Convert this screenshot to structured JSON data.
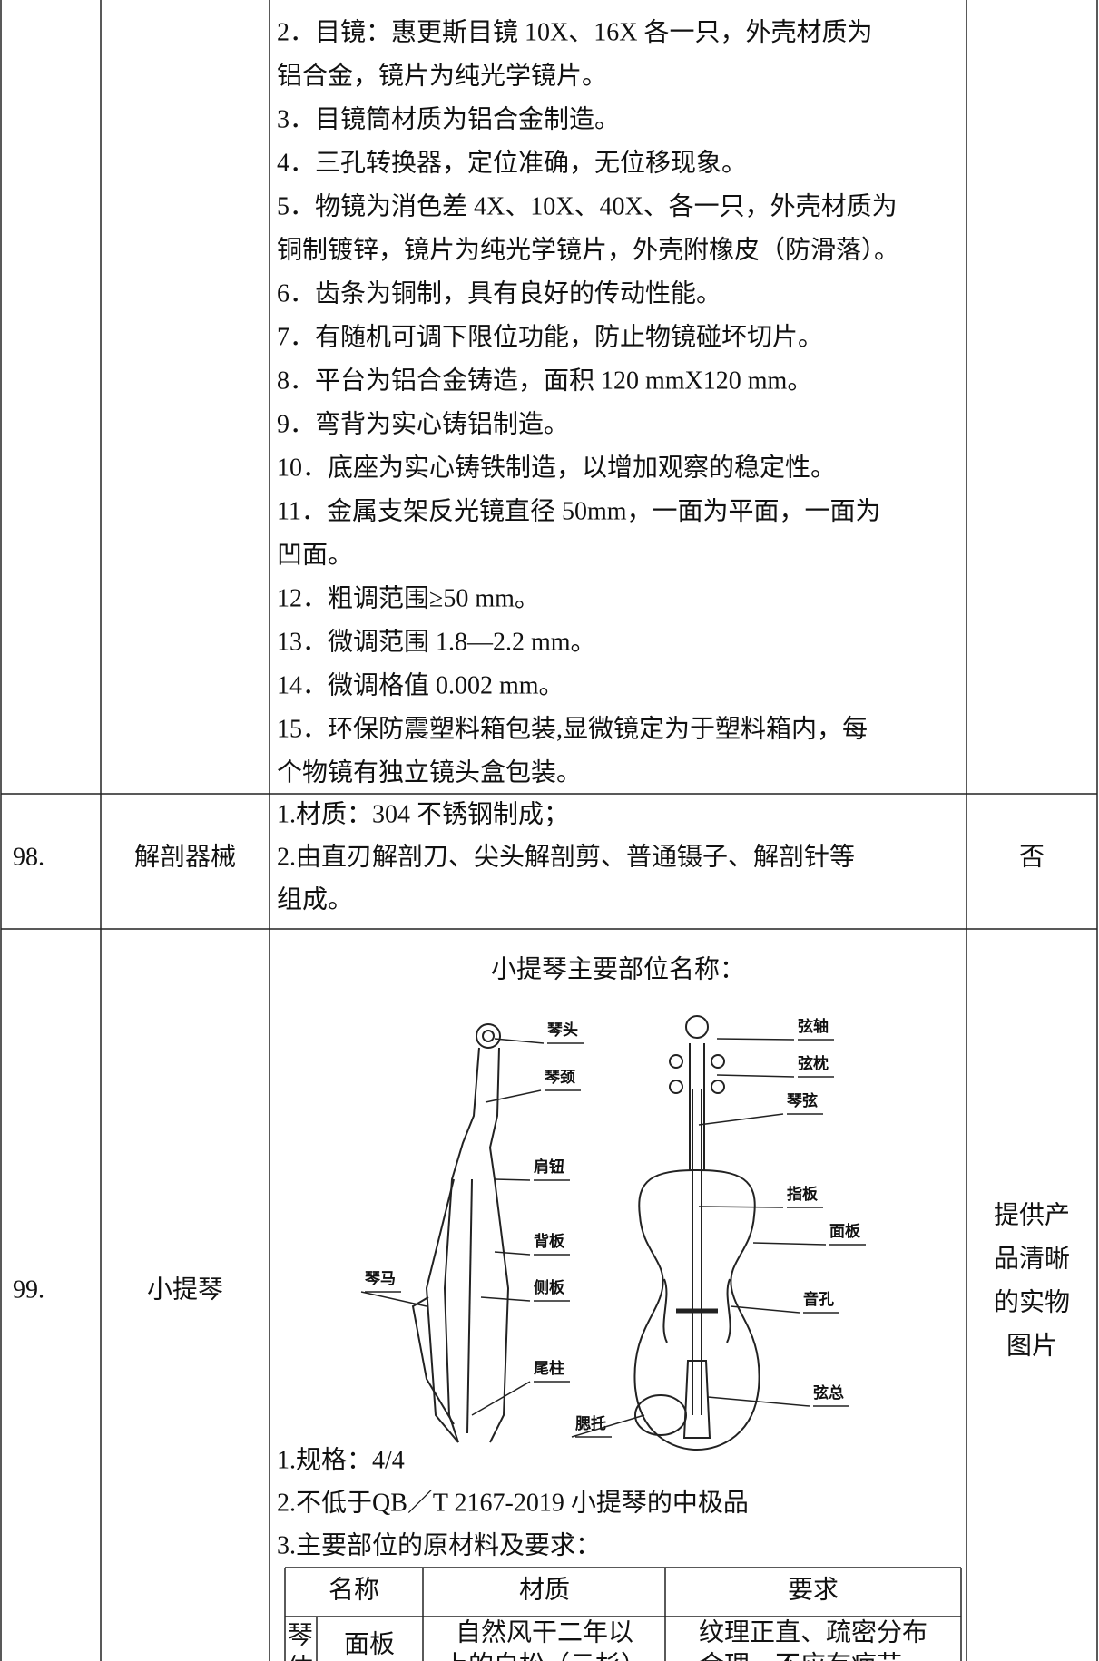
{
  "rows": [
    {
      "lines": [
        "2．目镜：惠更斯目镜 10X、16X 各一只，外壳材质为",
        "铝合金，镜片为纯光学镜片。",
        "3．目镜筒材质为铝合金制造。",
        "4．三孔转换器，定位准确，无位移现象。",
        "5．物镜为消色差 4X、10X、40X、各一只，外壳材质为",
        "铜制镀锌，镜片为纯光学镜片，外壳附橡皮（防滑落）。",
        "6．齿条为铜制，具有良好的传动性能。",
        "7．有随机可调下限位功能，防止物镜碰坏切片。",
        "8．平台为铝合金铸造，面积 120 mmX120 mm。",
        "9．弯背为实心铸铝制造。",
        "10．底座为实心铸铁制造，以增加观察的稳定性。",
        "11．金属支架反光镜直径 50mm，一面为平面，一面为",
        "凹面。",
        "12．粗调范围≥50 mm。",
        "13．微调范围 1.8—2.2 mm。",
        "14．微调格值 0.002 mm。",
        "15．环保防震塑料箱包装,显微镜定为于塑料箱内，每",
        "个物镜有独立镜头盒包装。"
      ]
    },
    {
      "no": "98.",
      "name": "解剖器械",
      "lines": [
        "1.材质：304 不锈钢制成；",
        "2.由直刃解剖刀、尖头解剖剪、普通镊子、解剖针等",
        "组成。"
      ],
      "note": "否"
    },
    {
      "no": "99.",
      "name": "小提琴",
      "figure_title": "小提琴主要部位名称：",
      "figure_labels": [
        "琴头",
        "琴颈",
        "肩钮",
        "背板",
        "琴马",
        "侧板",
        "尾柱",
        "腮托",
        "弦轴",
        "弦枕",
        "琴弦",
        "指板",
        "面板",
        "音孔",
        "弦总"
      ],
      "lines": [
        "1.规格：4/4",
        "2.不低于QB／T 2167-2019 小提琴的中极品",
        "3.主要部位的原材料及要求："
      ],
      "note_lines": [
        "提供产",
        "品清晰",
        "的实物",
        "图片"
      ],
      "sub_table": {
        "header": [
          "名称",
          "材质",
          "要求"
        ],
        "rows": [
          {
            "group_lines": [
              "琴",
              "体"
            ],
            "name": "面板",
            "material_lines": [
              "自然风干二年以",
              "上的白松（云杉）"
            ],
            "requirement_lines": [
              "纹理正直、疏密分布",
              "合理、不应有疤节、"
            ]
          }
        ]
      }
    }
  ]
}
